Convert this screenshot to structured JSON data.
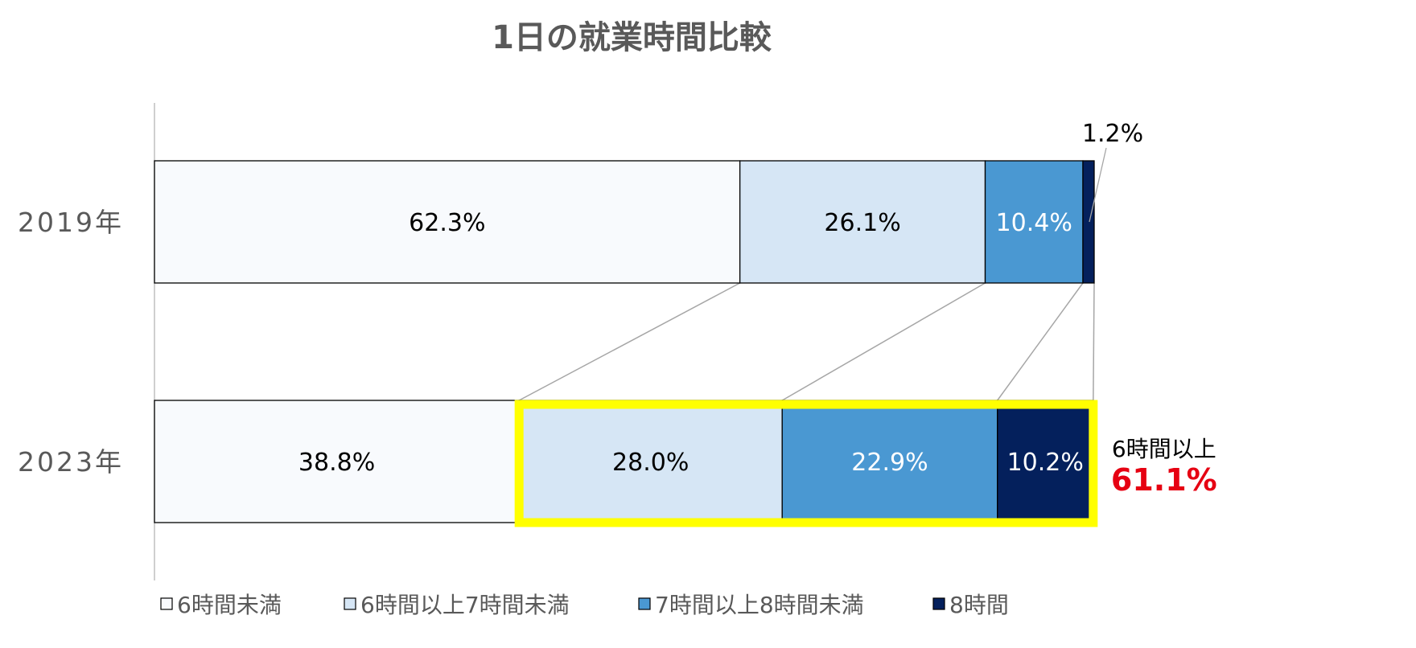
{
  "chart_data": {
    "type": "bar",
    "orientation": "horizontal",
    "stacked": "100%",
    "title": "1日の就業時間比較",
    "categories": [
      "2019年",
      "2023年"
    ],
    "series": [
      {
        "name": "6時間未満",
        "values": [
          62.3,
          38.8
        ],
        "color": "#F8FAFD",
        "label_color": "#000000"
      },
      {
        "name": "6時間以上7時間未満",
        "values": [
          26.1,
          28.0
        ],
        "color": "#D6E6F5",
        "label_color": "#000000"
      },
      {
        "name": "7時間以上8時間未満",
        "values": [
          10.4,
          22.9
        ],
        "color": "#4A98D2",
        "label_color": "#FFFFFF"
      },
      {
        "name": "8時間",
        "values": [
          1.2,
          10.2
        ],
        "color": "#04205C",
        "label_color": "#FFFFFF"
      }
    ],
    "data_labels": [
      [
        "62.3%",
        "26.1%",
        "10.4%",
        "1.2%"
      ],
      [
        "38.8%",
        "28.0%",
        "22.9%",
        "10.2%"
      ]
    ],
    "xlim": [
      0,
      100
    ],
    "legend_position": "bottom",
    "grid": false,
    "highlight": {
      "category": "2023年",
      "series": [
        "6時間以上7時間未満",
        "7時間以上8時間未満",
        "8時間"
      ],
      "border_color": "#FFFF00",
      "label": "6時間以上",
      "value": "61.1%",
      "value_color": "#E60012"
    }
  }
}
